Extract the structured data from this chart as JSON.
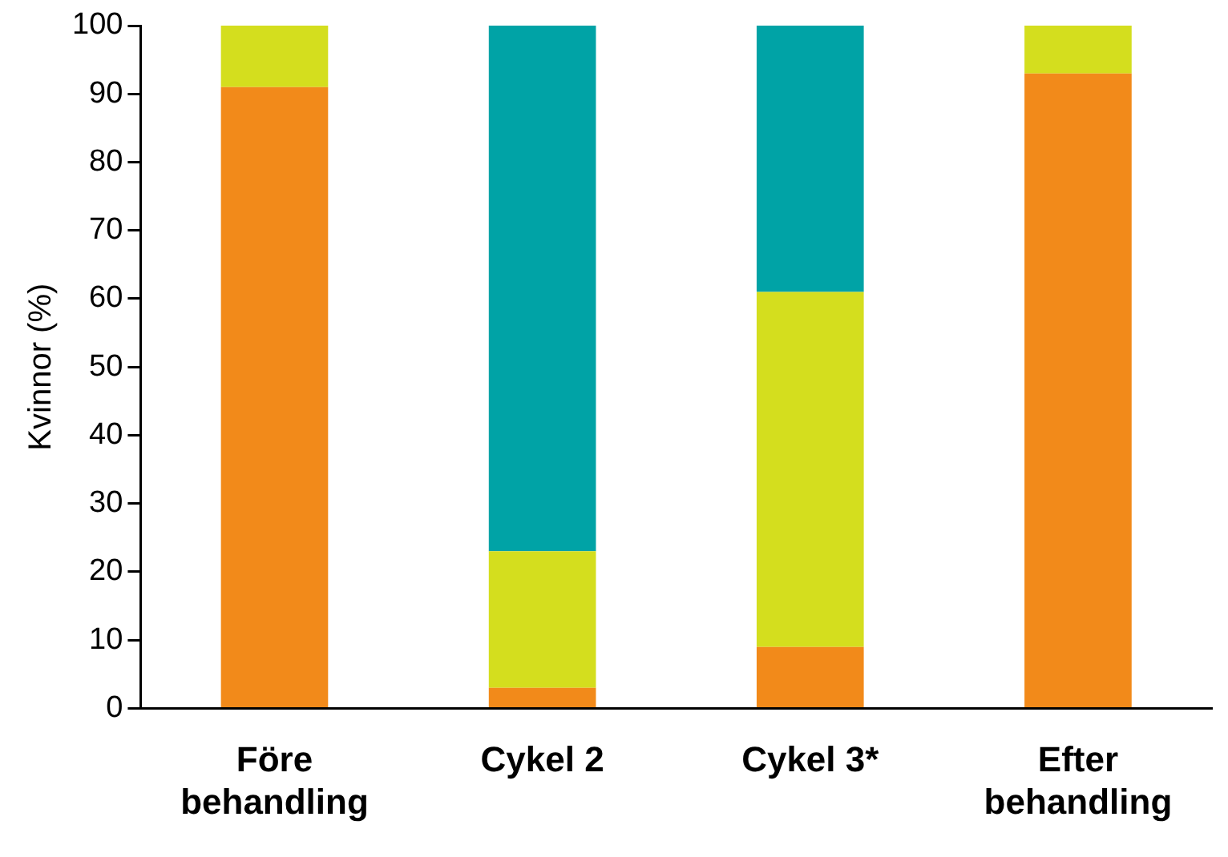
{
  "chart_data": {
    "type": "bar",
    "stacked": true,
    "ylabel": "Kvinnor (%)",
    "categories": [
      "Före behandling",
      "Cykel 2",
      "Cykel 3*",
      "Efter behandling"
    ],
    "series": [
      {
        "color": "#f28a1a",
        "values": [
          91,
          3,
          9,
          93
        ]
      },
      {
        "color": "#d4de1e",
        "values": [
          9,
          20,
          52,
          7
        ]
      },
      {
        "color": "#00a3a6",
        "values": [
          null,
          77,
          39,
          null
        ]
      }
    ],
    "ylim": [
      0,
      100
    ],
    "yticks": [
      0,
      10,
      20,
      30,
      40,
      50,
      60,
      70,
      80,
      90,
      100
    ],
    "grid": false,
    "legend": false
  }
}
